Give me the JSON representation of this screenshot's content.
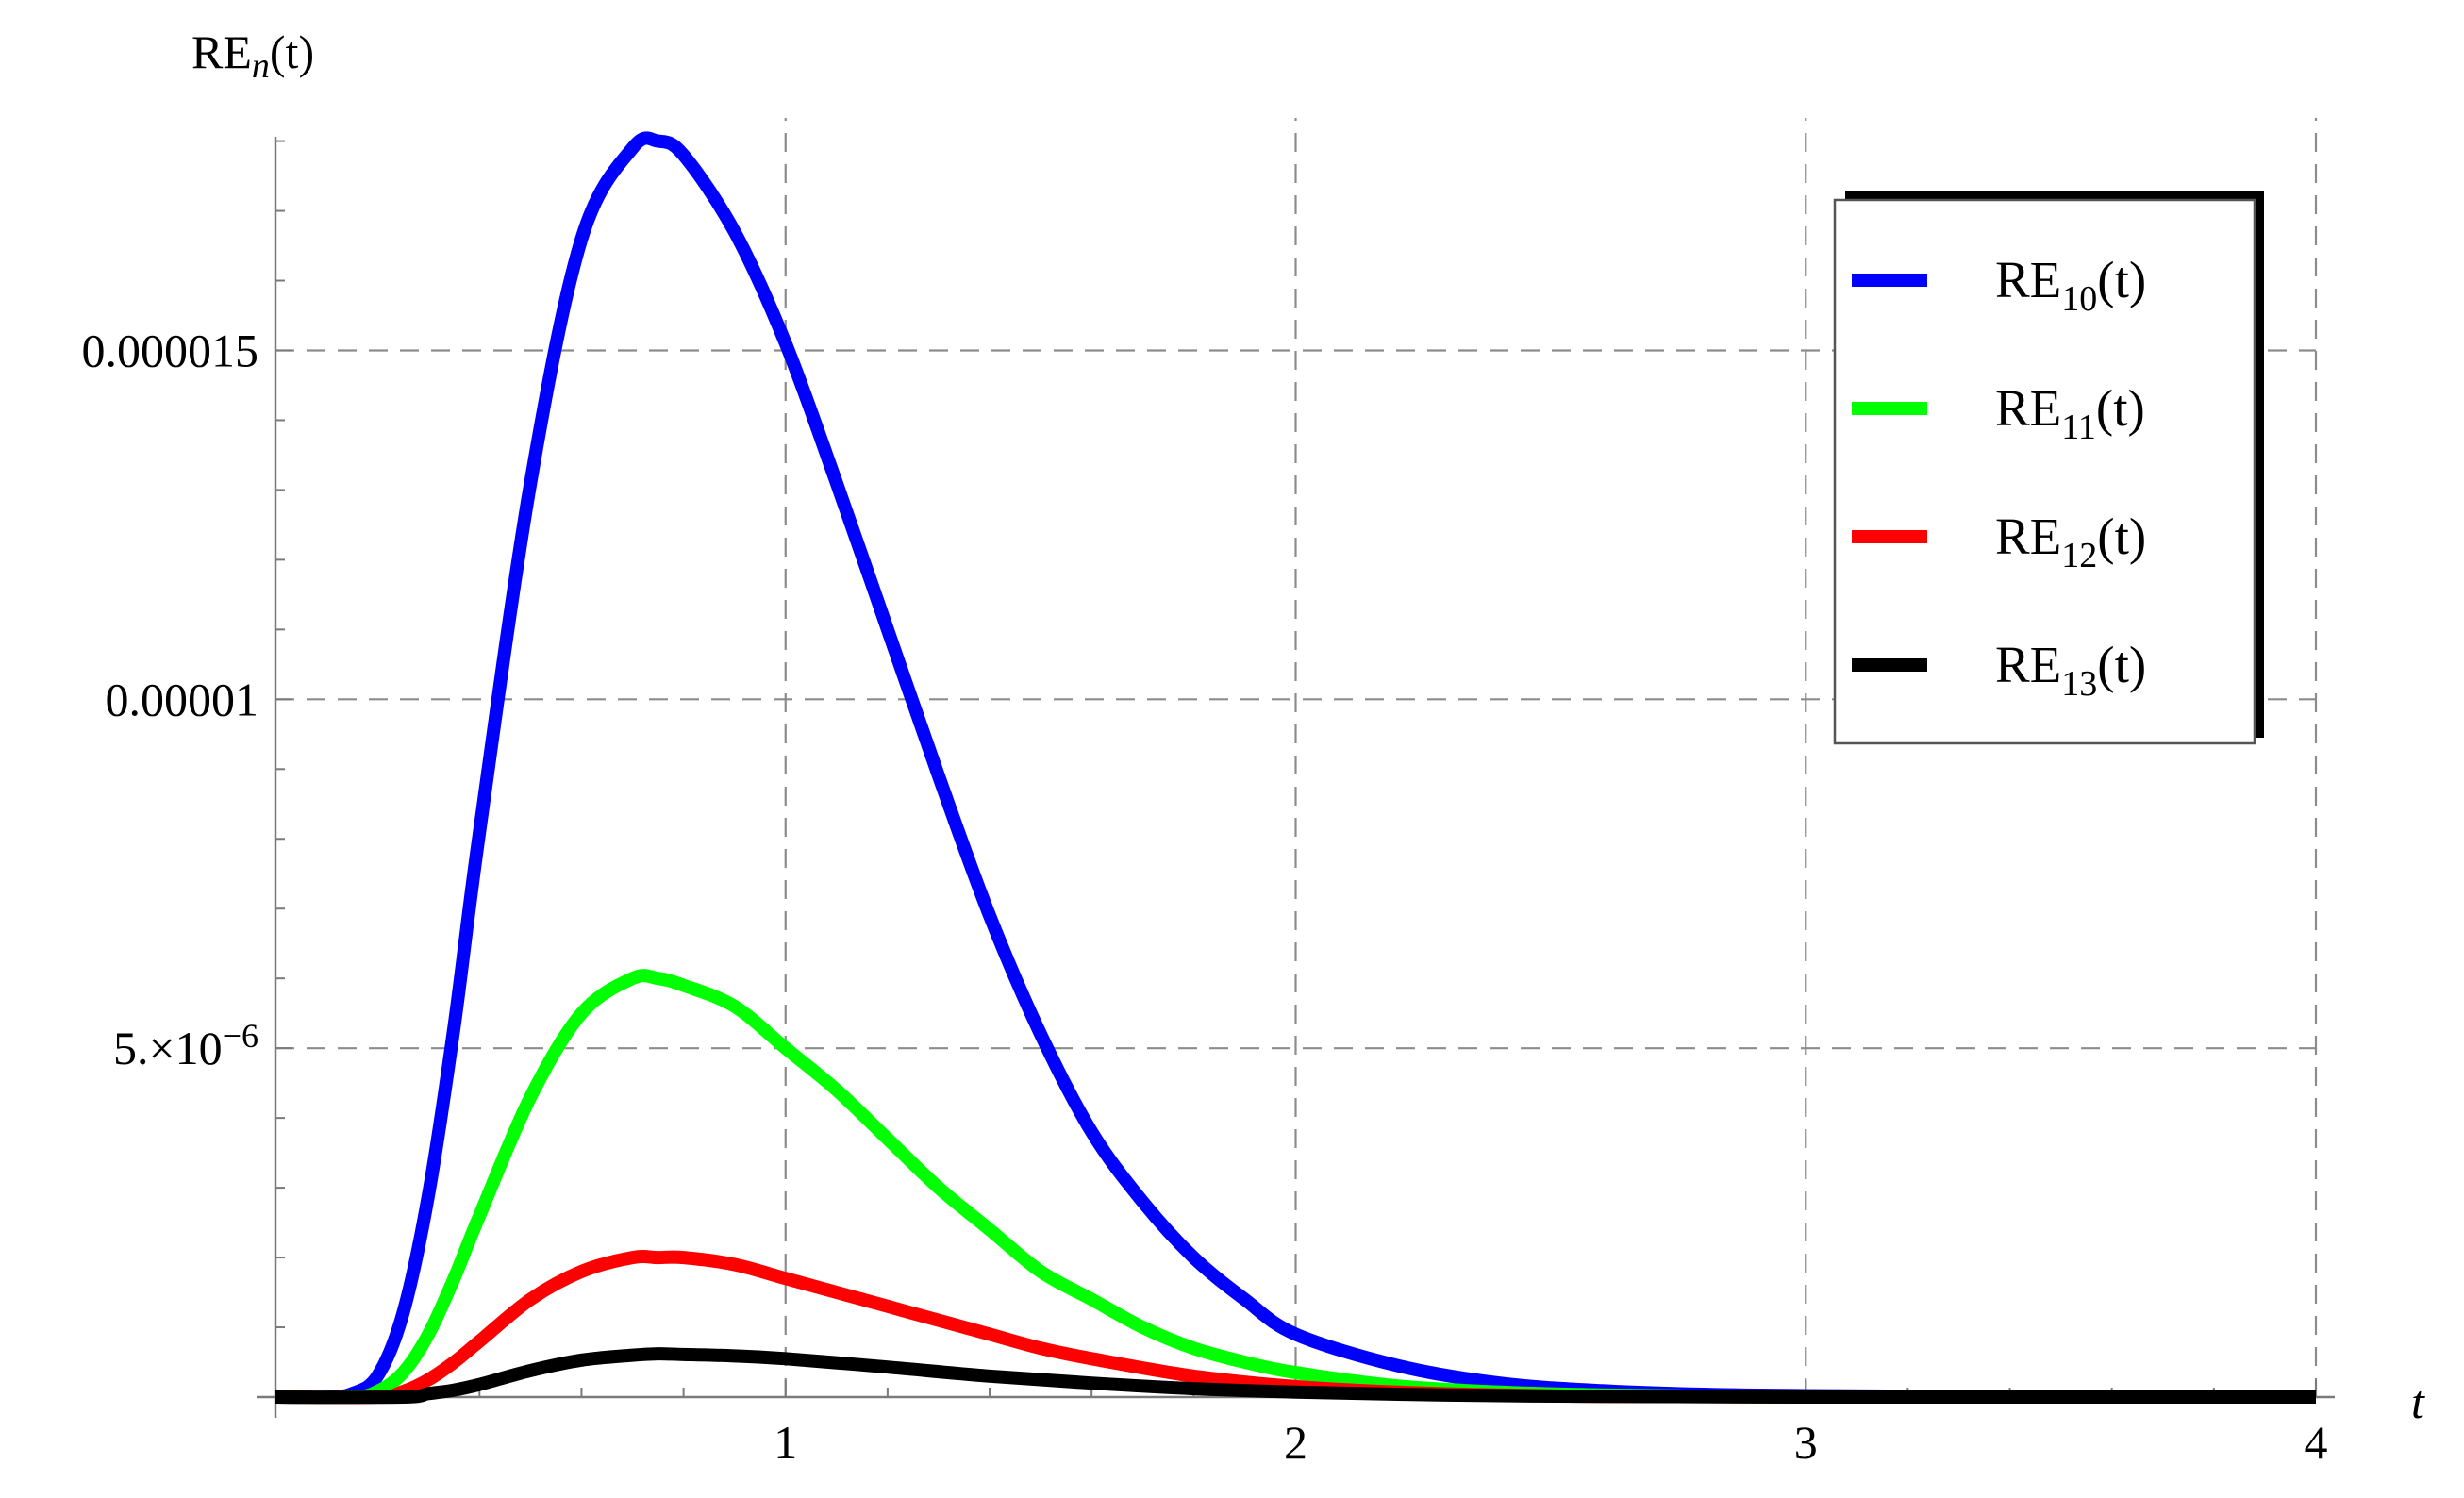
{
  "chart_data": {
    "type": "line",
    "xlabel": "t",
    "ylabel": {
      "base": "RE",
      "sub": "n",
      "suffix": "(t)"
    },
    "xlim": [
      0,
      4
    ],
    "ylim": [
      0,
      1.84e-05
    ],
    "grid": true,
    "x_ticks": [
      {
        "value": 1,
        "label": "1"
      },
      {
        "value": 2,
        "label": "2"
      },
      {
        "value": 3,
        "label": "3"
      },
      {
        "value": 4,
        "label": "4"
      }
    ],
    "y_ticks": [
      {
        "value": 5e-06,
        "label_main": "5.×10",
        "label_sup": "−6"
      },
      {
        "value": 1e-05,
        "label_main": "0.00001",
        "label_sup": ""
      },
      {
        "value": 1.5e-05,
        "label_main": "0.000015",
        "label_sup": ""
      }
    ],
    "legend": {
      "position": "top-right"
    },
    "series": [
      {
        "name": "RE10(t)",
        "label_base": "RE",
        "label_sub": "10",
        "label_suffix": "(t)",
        "color": "#0000ff",
        "x": [
          0,
          0.1,
          0.15,
          0.2,
          0.25,
          0.3,
          0.35,
          0.4,
          0.5,
          0.6,
          0.7,
          0.75,
          0.8,
          0.9,
          1.0,
          1.1,
          1.2,
          1.3,
          1.4,
          1.5,
          1.6,
          1.7,
          1.8,
          1.9,
          2.0,
          2.2,
          2.4,
          2.6,
          2.8,
          3.0,
          3.25,
          3.5,
          3.75,
          4.0
        ],
        "y": [
          0,
          0,
          5e-08,
          3e-07,
          1.2e-06,
          2.9e-06,
          5.3e-06,
          8.1e-06,
          1.31e-05,
          1.66e-05,
          1.79e-05,
          1.8e-05,
          1.78e-05,
          1.67e-05,
          1.51e-05,
          1.31e-05,
          1.1e-05,
          8.9e-06,
          6.9e-06,
          5.2e-06,
          3.8e-06,
          2.8e-06,
          2e-06,
          1.4e-06,
          9e-07,
          4.5e-07,
          2e-07,
          9e-08,
          4e-08,
          2e-08,
          1e-08,
          0,
          0,
          0
        ]
      },
      {
        "name": "RE11(t)",
        "label_base": "RE",
        "label_sub": "11",
        "label_suffix": "(t)",
        "color": "#00ff00",
        "x": [
          0,
          0.15,
          0.2,
          0.25,
          0.3,
          0.35,
          0.4,
          0.5,
          0.6,
          0.7,
          0.75,
          0.8,
          0.9,
          1.0,
          1.1,
          1.2,
          1.3,
          1.4,
          1.5,
          1.6,
          1.7,
          1.8,
          1.9,
          2.0,
          2.2,
          2.4,
          2.6,
          2.8,
          3.0,
          3.5,
          4.0
        ],
        "y": [
          0,
          0,
          8e-08,
          3.5e-07,
          9e-07,
          1.7e-06,
          2.6e-06,
          4.3e-06,
          5.5e-06,
          6e-06,
          6e-06,
          5.9e-06,
          5.6e-06,
          5e-06,
          4.4e-06,
          3.7e-06,
          3e-06,
          2.4e-06,
          1.8e-06,
          1.4e-06,
          1e-06,
          7e-07,
          5e-07,
          3.5e-07,
          1.6e-07,
          7e-08,
          3e-08,
          1e-08,
          0,
          0,
          0
        ]
      },
      {
        "name": "RE12(t)",
        "label_base": "RE",
        "label_sub": "12",
        "label_suffix": "(t)",
        "color": "#ff0000",
        "x": [
          0,
          0.2,
          0.25,
          0.3,
          0.35,
          0.4,
          0.5,
          0.6,
          0.7,
          0.75,
          0.8,
          0.9,
          1.0,
          1.1,
          1.2,
          1.3,
          1.4,
          1.5,
          1.6,
          1.8,
          2.0,
          2.2,
          2.4,
          2.6,
          3.0,
          3.5,
          4.0
        ],
        "y": [
          0,
          0,
          8e-08,
          2.5e-07,
          5e-07,
          8e-07,
          1.4e-06,
          1.8e-06,
          2e-06,
          2e-06,
          2e-06,
          1.9e-06,
          1.7e-06,
          1.5e-06,
          1.3e-06,
          1.1e-06,
          9e-07,
          7e-07,
          5.5e-07,
          3e-07,
          1.5e-07,
          7e-08,
          3e-08,
          1e-08,
          0,
          0,
          0
        ]
      },
      {
        "name": "RE13(t)",
        "label_base": "RE",
        "label_sub": "13",
        "label_suffix": "(t)",
        "color": "#000000",
        "x": [
          0,
          0.25,
          0.3,
          0.35,
          0.4,
          0.5,
          0.6,
          0.7,
          0.75,
          0.8,
          0.9,
          1.0,
          1.2,
          1.4,
          1.6,
          1.8,
          2.0,
          2.2,
          2.4,
          2.6,
          3.0,
          3.5,
          4.0
        ],
        "y": [
          0,
          0,
          5e-08,
          1e-07,
          1.8e-07,
          3.8e-07,
          5.3e-07,
          6e-07,
          6.2e-07,
          6.1e-07,
          5.9e-07,
          5.5e-07,
          4.3e-07,
          3e-07,
          2e-07,
          1.2e-07,
          7e-08,
          4e-08,
          2e-08,
          1e-08,
          0,
          0,
          0
        ]
      }
    ]
  }
}
